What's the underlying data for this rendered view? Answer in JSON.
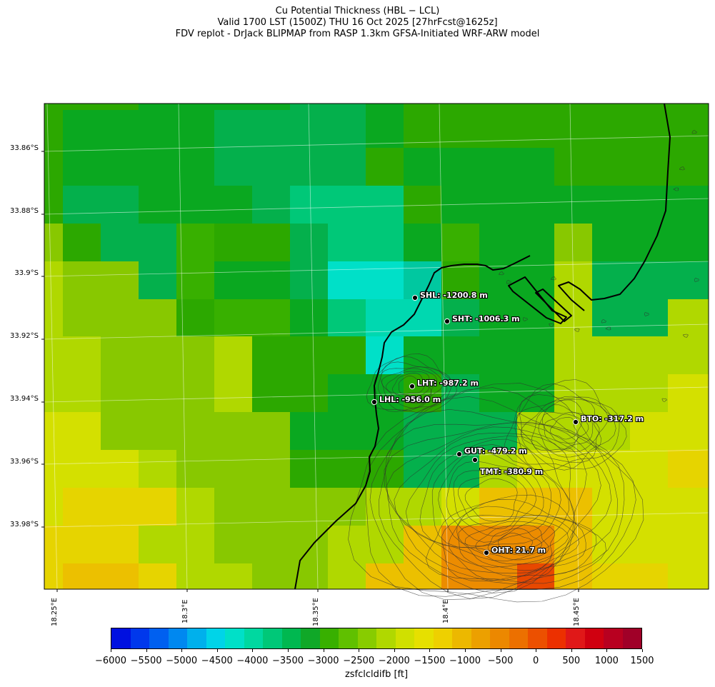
{
  "title_lines": [
    "Cu Potential Thickness (HBL − LCL)",
    "Valid 1700 LST (1500Z) THU 16 Oct 2025 [27hrFcst@1625z]",
    "FDV replot - DrJack BLIPMAP from RASP 1.3km GFSA-Initiated WRF-ARW model"
  ],
  "lat_labels": [
    "33.86°S",
    "33.88°S",
    "33.9°S",
    "33.92°S",
    "33.94°S",
    "33.96°S",
    "33.98°S"
  ],
  "lon_labels": [
    "18.25°E",
    "18.3°E",
    "18.35°E",
    "18.4°E",
    "18.45°E"
  ],
  "stations": [
    {
      "id": "SHL",
      "label": "SHL: -1200.8 m"
    },
    {
      "id": "SHT",
      "label": "SHT: -1006.3 m"
    },
    {
      "id": "LHT",
      "label": "LHT: -987.2 m"
    },
    {
      "id": "LHL",
      "label": "LHL: -956.0 m"
    },
    {
      "id": "BTO",
      "label": "BTO: -317.2 m"
    },
    {
      "id": "GUT",
      "label": "GUT: -479.2 m"
    },
    {
      "id": "TMT",
      "label": "TMT: -380.9 m"
    },
    {
      "id": "OHT",
      "label": "OHT: 21.7 m"
    }
  ],
  "colorbar": {
    "label": "zsfclcldifb [ft]",
    "ticks": [
      "−6000",
      "−5500",
      "−5000",
      "−4500",
      "−4000",
      "−3500",
      "−3000",
      "−2500",
      "−2000",
      "−1500",
      "−1000",
      "−500",
      "0",
      "500",
      "1000",
      "1500"
    ],
    "colors": [
      "#0010e0",
      "#0038ec",
      "#0060f0",
      "#0088f0",
      "#00b0ec",
      "#00d4e8",
      "#00e0c8",
      "#00d8a0",
      "#00c878",
      "#00b850",
      "#10a828",
      "#38b000",
      "#60c000",
      "#88cc00",
      "#b0d800",
      "#d0e000",
      "#e6e000",
      "#eed000",
      "#ecb800",
      "#eca000",
      "#ec8800",
      "#ec7000",
      "#ec5000",
      "#ec3000",
      "#e01818",
      "#d00010",
      "#b80020",
      "#a00028"
    ]
  },
  "colors": {
    "coastline": "#000000",
    "contour": "#303030"
  }
}
